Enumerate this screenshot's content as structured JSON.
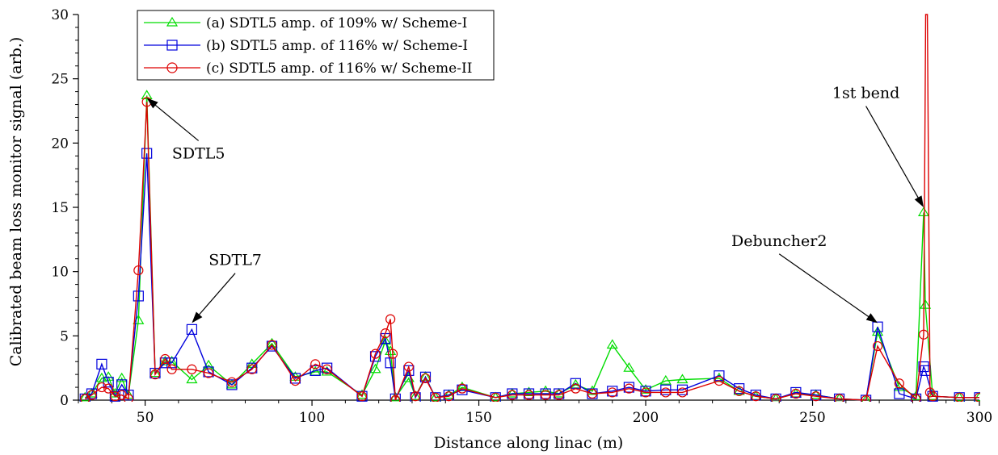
{
  "chart_data": {
    "type": "line",
    "title": "",
    "xlabel": "Distance along linac (m)",
    "ylabel": "Calibrated beam loss monitor signal (arb.)",
    "xlim": [
      30,
      300
    ],
    "ylim": [
      0,
      30
    ],
    "xticks": [
      50,
      100,
      150,
      200,
      250,
      300
    ],
    "xtick_labels": [
      "50",
      "100",
      "150",
      "200",
      "250",
      "300"
    ],
    "yticks": [
      0,
      5,
      10,
      15,
      20,
      25,
      30
    ],
    "ytick_labels": [
      "0",
      "5",
      "10",
      "15",
      "20",
      "25",
      "30"
    ],
    "grid": false,
    "legend": "top-left",
    "series": [
      {
        "name": "(a) SDTL5 amp. of 109% w/ Scheme-I",
        "color": "#00dd00",
        "marker": "triangle",
        "x": [
          32,
          34,
          37,
          39,
          41,
          43,
          45,
          48,
          50.5,
          53,
          56,
          58,
          64,
          69,
          76,
          82,
          88,
          95,
          101,
          104.5,
          115,
          119,
          122,
          123.5,
          125,
          129,
          131,
          134,
          137,
          141,
          145,
          155,
          160,
          165,
          170,
          174,
          179,
          184,
          190,
          195,
          200,
          206,
          211,
          222,
          228,
          233,
          239,
          245,
          251,
          258,
          266,
          269.5,
          276,
          281,
          283.3,
          283.8,
          286,
          294,
          300
        ],
        "y": [
          0.2,
          0.5,
          1.7,
          1.8,
          0.5,
          1.7,
          0.4,
          6.2,
          23.7,
          2.1,
          3.0,
          3.0,
          1.6,
          2.7,
          1.2,
          2.8,
          4.4,
          1.8,
          2.2,
          2.2,
          0.4,
          2.4,
          4.6,
          3.8,
          0.2,
          1.7,
          0.3,
          1.8,
          0.2,
          0.4,
          1.0,
          0.2,
          0.5,
          0.6,
          0.7,
          0.5,
          1.2,
          0.7,
          4.3,
          2.5,
          0.8,
          1.5,
          1.6,
          1.7,
          0.7,
          0.3,
          0.1,
          0.5,
          0.4,
          0.1,
          0.0,
          5.3,
          1.0,
          0.3,
          14.6,
          7.4,
          0.3,
          0.2,
          0.2
        ]
      },
      {
        "name": "(b) SDTL5 amp. of 116% w/ Scheme-I",
        "color": "#0000dd",
        "marker": "square",
        "x": [
          32,
          34,
          37,
          39,
          41,
          43,
          45,
          48,
          50.5,
          53,
          56,
          58,
          64,
          69,
          76,
          82,
          88,
          95,
          101,
          104.5,
          115,
          119,
          122,
          123.5,
          125,
          129,
          131,
          134,
          137,
          141,
          145,
          155,
          160,
          165,
          170,
          174,
          179,
          184,
          190,
          195,
          200,
          206,
          211,
          222,
          228,
          233,
          239,
          245,
          251,
          258,
          266,
          269.5,
          276,
          281,
          283.3,
          283.8,
          286,
          294,
          300
        ],
        "y": [
          0.1,
          0.5,
          2.8,
          1.4,
          0.3,
          1.2,
          0.4,
          8.1,
          19.2,
          2.1,
          2.9,
          2.9,
          5.5,
          2.2,
          1.2,
          2.5,
          4.2,
          1.7,
          2.3,
          2.5,
          0.3,
          3.4,
          4.8,
          2.9,
          0.1,
          2.3,
          0.2,
          1.8,
          0.2,
          0.4,
          0.8,
          0.2,
          0.5,
          0.5,
          0.5,
          0.5,
          1.3,
          0.5,
          0.7,
          1.0,
          0.7,
          0.8,
          0.8,
          1.9,
          0.9,
          0.4,
          0.1,
          0.6,
          0.4,
          0.1,
          0.0,
          5.7,
          0.5,
          0.1,
          2.6,
          2.3,
          0.3,
          0.2,
          0.2
        ]
      },
      {
        "name": "(c) SDTL5 amp. of 116% w/ Scheme-II",
        "color": "#dd0000",
        "marker": "circle",
        "x": [
          32,
          34,
          37,
          39,
          41,
          43,
          45,
          48,
          50.5,
          53,
          56,
          58,
          64,
          69,
          76,
          82,
          88,
          95,
          101,
          104.5,
          115,
          119,
          122,
          123.5,
          124.2,
          125,
          129,
          131,
          134,
          137,
          141,
          145,
          155,
          160,
          165,
          170,
          174,
          179,
          184,
          190,
          195,
          200,
          206,
          211,
          222,
          228,
          233,
          239,
          245,
          251,
          258,
          266,
          269.5,
          276,
          281,
          283.3,
          283.9,
          284.4,
          285.2,
          286,
          294,
          300
        ],
        "y": [
          0.1,
          0.4,
          1.0,
          0.9,
          0.3,
          0.4,
          0.1,
          10.1,
          23.2,
          2.0,
          3.2,
          2.4,
          2.4,
          2.1,
          1.4,
          2.4,
          4.3,
          1.5,
          2.8,
          2.4,
          0.3,
          3.6,
          5.2,
          6.3,
          3.6,
          0.0,
          2.6,
          0.3,
          1.7,
          0.2,
          0.3,
          0.9,
          0.2,
          0.4,
          0.4,
          0.4,
          0.4,
          0.9,
          0.5,
          0.6,
          0.9,
          0.6,
          0.6,
          0.6,
          1.5,
          0.7,
          0.3,
          0.1,
          0.5,
          0.3,
          0.1,
          0.0,
          4.2,
          1.3,
          0.1,
          5.1,
          30,
          30,
          0.6,
          0.3,
          0.2,
          0.2
        ]
      }
    ],
    "annotations": [
      {
        "text": "SDTL5",
        "target_x": 50.5,
        "target_y": 23.5,
        "text_x": 66,
        "text_y": 18.8
      },
      {
        "text": "SDTL7",
        "target_x": 64,
        "target_y": 6.0,
        "text_x": 77,
        "text_y": 10.5
      },
      {
        "text": "Debuncher2",
        "target_x": 269.5,
        "target_y": 6.0,
        "text_x": 240,
        "text_y": 12.0
      },
      {
        "text": "1st bend",
        "target_x": 283.3,
        "target_y": 15.0,
        "text_x": 266,
        "text_y": 23.5
      }
    ]
  }
}
